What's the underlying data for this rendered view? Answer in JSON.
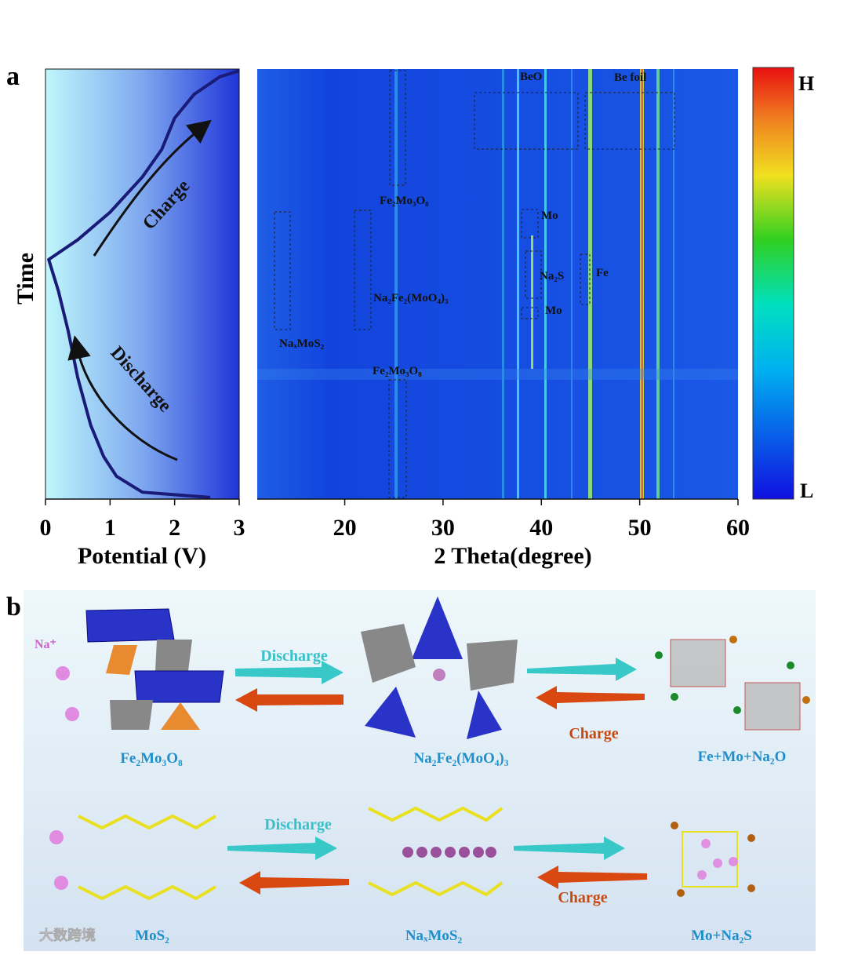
{
  "chart_data": [
    {
      "type": "line",
      "panel_label": "a",
      "x": [
        2.55,
        1.5,
        1.1,
        0.9,
        0.7,
        0.5,
        0.35,
        0.2,
        0.05,
        0.5,
        1.0,
        1.5,
        1.8,
        2.0,
        2.3,
        2.7,
        3.0
      ],
      "values": [
        0.4,
        1.6,
        5.3,
        9.9,
        17.2,
        28.2,
        39.2,
        48.4,
        55.7,
        60.3,
        66.7,
        74.9,
        81.3,
        88.6,
        94.1,
        98.2,
        99.6
      ],
      "color": "#1a1a78",
      "xlim": [
        0,
        3
      ],
      "xticks": [
        0,
        1,
        2,
        3
      ],
      "ylim": [
        0,
        100
      ],
      "x_label": "Potential (V)",
      "y_label": "Time",
      "annotations": [
        "Charge",
        "Discharge"
      ]
    },
    {
      "type": "heatmap",
      "xlim": [
        11.1,
        60
      ],
      "xticks": [
        20,
        30,
        40,
        50,
        60
      ],
      "x_label": "2 Theta(degree)",
      "annotations": [
        "BeO",
        "Be foil",
        "Fe₂Mo₃O₈",
        "Mo",
        "Na₂S",
        "Fe",
        "Na₂Fe₂(MoO₄)₃",
        "Mo",
        "NaₓMoS₂",
        "Fe₂Mo₃O₈"
      ],
      "colorbar": {
        "high": "H",
        "low": "L"
      }
    }
  ],
  "panel_b": {
    "label": "b",
    "ion": "Na⁺",
    "rows": [
      {
        "left": "Fe₂Mo₃O₈",
        "middle": "Na₂Fe₂(MoO₄)₃",
        "right": "Fe+Mo+Na₂O",
        "discharge": "Discharge",
        "charge": "Charge"
      },
      {
        "left": "MoS₂",
        "middle": "NaₓMoS₂",
        "right": "Mo+Na₂S",
        "discharge": "Discharge",
        "charge": "Charge"
      }
    ]
  },
  "watermark": "大数跨境"
}
